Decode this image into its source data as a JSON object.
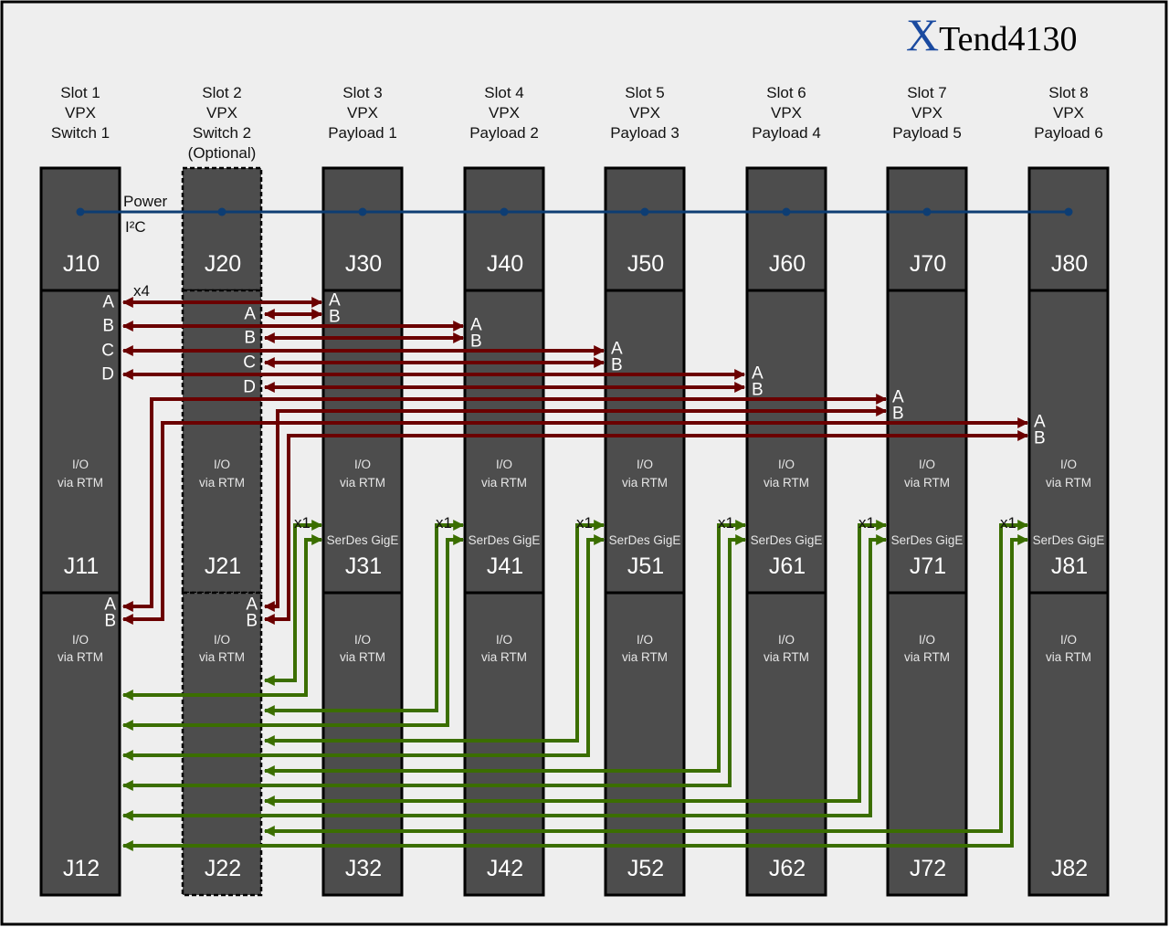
{
  "title": {
    "logo_x": "X",
    "logo_rest": "Tend4130"
  },
  "colors": {
    "background": "#eeeeee",
    "module": "#4d4d4d",
    "power_bus": "#0d3d73",
    "switch_link": "#6b0000",
    "gige_link": "#3b6e00",
    "logo_blue": "#1a4aa0"
  },
  "labels": {
    "power": "Power",
    "i2c": "I²C",
    "x4": "x4",
    "x1": "x1",
    "io_line1": "I/O",
    "io_line2": "via RTM",
    "serdes": "SerDes GigE"
  },
  "ports": [
    "A",
    "B",
    "C",
    "D"
  ],
  "slots": [
    {
      "header": [
        "Slot 1",
        "VPX",
        "Switch 1"
      ],
      "connectors": [
        "J10",
        "J11",
        "J12"
      ],
      "optional": false
    },
    {
      "header": [
        "Slot 2",
        "VPX",
        "Switch 2",
        "(Optional)"
      ],
      "connectors": [
        "J20",
        "J21",
        "J22"
      ],
      "optional": true
    },
    {
      "header": [
        "Slot 3",
        "VPX",
        "Payload 1"
      ],
      "connectors": [
        "J30",
        "J31",
        "J32"
      ],
      "optional": false
    },
    {
      "header": [
        "Slot 4",
        "VPX",
        "Payload 2"
      ],
      "connectors": [
        "J40",
        "J41",
        "J42"
      ],
      "optional": false
    },
    {
      "header": [
        "Slot 5",
        "VPX",
        "Payload 3"
      ],
      "connectors": [
        "J50",
        "J51",
        "J52"
      ],
      "optional": false
    },
    {
      "header": [
        "Slot 6",
        "VPX",
        "Payload 4"
      ],
      "connectors": [
        "J60",
        "J61",
        "J62"
      ],
      "optional": false
    },
    {
      "header": [
        "Slot 7",
        "VPX",
        "Payload 5"
      ],
      "connectors": [
        "J70",
        "J71",
        "J72"
      ],
      "optional": false
    },
    {
      "header": [
        "Slot 8",
        "VPX",
        "Payload 6"
      ],
      "connectors": [
        "J80",
        "J81",
        "J82"
      ],
      "optional": false
    }
  ]
}
